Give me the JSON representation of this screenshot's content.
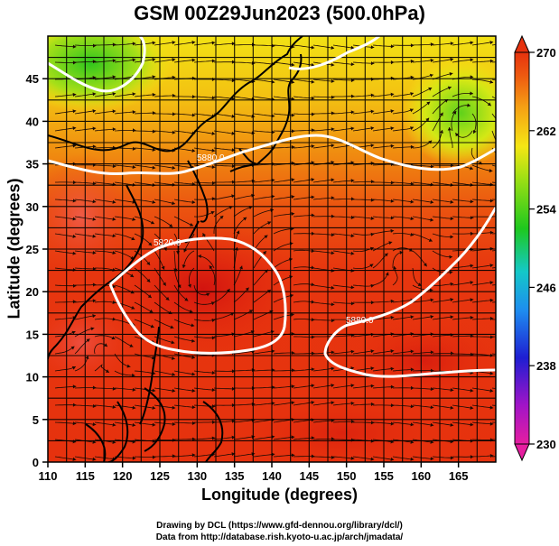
{
  "title": "GSM 00Z29Jun2023 (500.0hPa)",
  "xaxis": {
    "label": "Longitude (degrees)",
    "ticks": [
      "110",
      "115",
      "120",
      "125",
      "130",
      "135",
      "140",
      "145",
      "150",
      "155",
      "160",
      "165"
    ],
    "range": [
      110,
      170
    ]
  },
  "yaxis": {
    "label": "Latitude  (degrees)",
    "ticks": [
      "0",
      "5",
      "10",
      "15",
      "20",
      "25",
      "30",
      "35",
      "40",
      "45"
    ],
    "range": [
      0,
      50
    ]
  },
  "colorbar": {
    "ticks": [
      "230",
      "238",
      "246",
      "254",
      "262",
      "270"
    ],
    "range": [
      230,
      270
    ]
  },
  "contour_labels": [
    "5880.0",
    "5820.0",
    "5880.0",
    "5880.0"
  ],
  "credits": {
    "line1": "Drawing by DCL (https://www.gfd-dennou.org/library/dcl/)",
    "line2": "Data from http://database.rish.kyoto-u.ac.jp/arch/jmadata/"
  },
  "colors": {
    "warm": "#e8300e",
    "hot": "#d61f10",
    "orange": "#f07a10",
    "yellow": "#f3e813",
    "green": "#2ec51c",
    "contour": "#ffffff"
  }
}
